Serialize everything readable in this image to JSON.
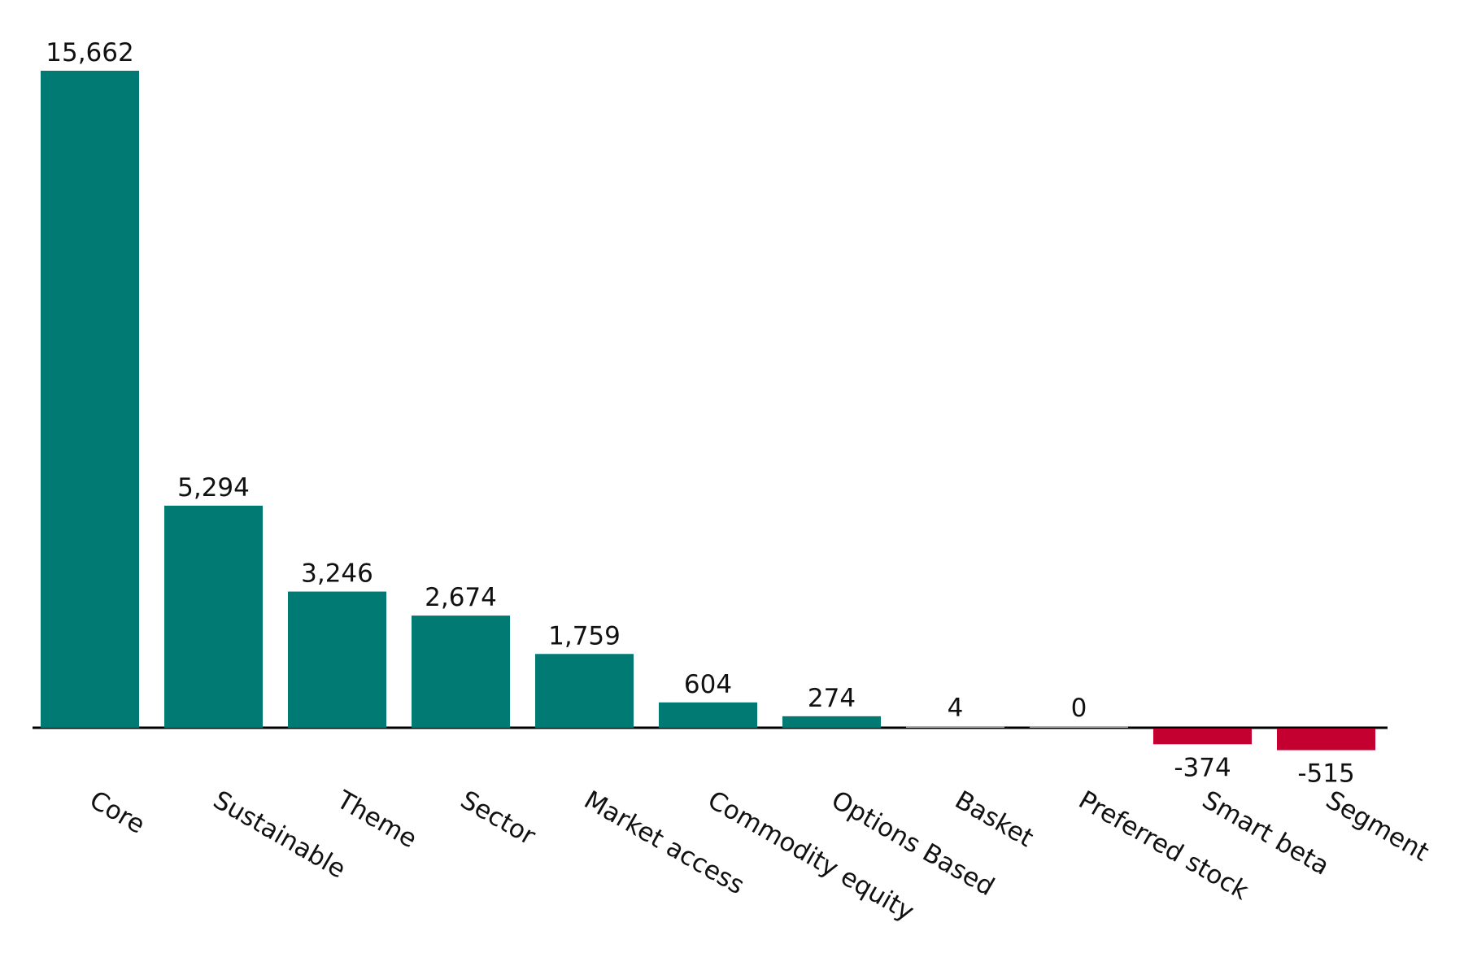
{
  "chart_data": {
    "type": "bar",
    "title": "",
    "xlabel": "",
    "ylabel": "",
    "categories": [
      "Core",
      "Sustainable",
      "Theme",
      "Sector",
      "Market access",
      "Commodity equity",
      "Options Based",
      "Basket",
      "Preferred stock",
      "Smart beta",
      "Segment"
    ],
    "values": [
      15662,
      5294,
      3246,
      2674,
      1759,
      604,
      274,
      4,
      0,
      -374,
      -515
    ],
    "data_labels": [
      "15,662",
      "5,294",
      "3,246",
      "2,674",
      "1,759",
      "604",
      "274",
      "4",
      "0",
      "-374",
      "-515"
    ],
    "ylim": [
      -515,
      15662
    ],
    "grid": false,
    "legend": "none",
    "colors": {
      "positive": "#007a73",
      "negative": "#c3002f",
      "zero": "#b0b0b0",
      "axis": "#000000"
    }
  }
}
